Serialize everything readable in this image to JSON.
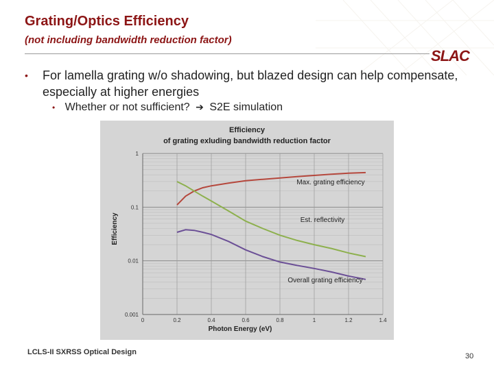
{
  "slide": {
    "title": "Grating/Optics Efficiency",
    "subtitle": "(not including bandwidth reduction factor)",
    "logo": "SLAC",
    "bullet1": "For lamella grating w/o shadowing, but blazed design can help compensate, especially at higher energies",
    "bullet2_a": "Whether or not sufficient?",
    "bullet2_b": "S2E simulation",
    "footer": "LCLS-II SXRSS Optical Design",
    "page_number": "30"
  },
  "colors": {
    "accent": "#8c1515",
    "red_series": "#b5473c",
    "green_series": "#8db04d",
    "purple_series": "#6b4f96"
  },
  "chart_data": {
    "type": "line",
    "title": "Efficiency",
    "subtitle": "of grating exluding bandwidth reduction factor",
    "xlabel": "Photon Energy (eV)",
    "ylabel": "Efficiency",
    "yscale": "log",
    "xlim": [
      0,
      1.4
    ],
    "ylim": [
      0.001,
      1
    ],
    "xticks": [
      "0",
      "0.2",
      "0.4",
      "0.6",
      "0.8",
      "1",
      "1.2",
      "1.4"
    ],
    "yticks": [
      "1",
      "0.1",
      "0.01",
      "0.001"
    ],
    "series": [
      {
        "name": "Max. grating efficiency",
        "color": "#b5473c",
        "x": [
          0.2,
          0.25,
          0.3,
          0.35,
          0.4,
          0.5,
          0.6,
          0.7,
          0.8,
          0.9,
          1.0,
          1.1,
          1.2,
          1.3
        ],
        "y": [
          0.11,
          0.16,
          0.2,
          0.23,
          0.25,
          0.28,
          0.31,
          0.33,
          0.35,
          0.37,
          0.39,
          0.41,
          0.43,
          0.44
        ]
      },
      {
        "name": "Est. reflectivity",
        "color": "#8db04d",
        "x": [
          0.2,
          0.25,
          0.3,
          0.35,
          0.4,
          0.5,
          0.6,
          0.7,
          0.8,
          0.9,
          1.0,
          1.1,
          1.2,
          1.3
        ],
        "y": [
          0.3,
          0.25,
          0.2,
          0.16,
          0.13,
          0.085,
          0.055,
          0.04,
          0.03,
          0.024,
          0.02,
          0.017,
          0.014,
          0.012
        ]
      },
      {
        "name": "Overall grating efficiency",
        "color": "#6b4f96",
        "x": [
          0.2,
          0.25,
          0.3,
          0.35,
          0.4,
          0.5,
          0.6,
          0.7,
          0.8,
          0.9,
          1.0,
          1.1,
          1.2,
          1.3
        ],
        "y": [
          0.034,
          0.038,
          0.037,
          0.034,
          0.031,
          0.023,
          0.016,
          0.012,
          0.0095,
          0.0082,
          0.0072,
          0.0062,
          0.0052,
          0.0045
        ]
      }
    ]
  }
}
